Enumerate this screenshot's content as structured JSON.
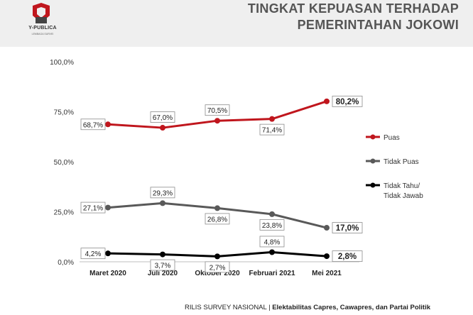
{
  "header": {
    "brand": "Y-PUBLICA",
    "brand_sub": "LEMBAGA SURVEI",
    "title_line1": "TINGKAT KEPUASAN TERHADAP",
    "title_line2": "PEMERINTAHAN JOKOWI"
  },
  "footer": {
    "left": "RILIS SURVEY NASIONAL | ",
    "right": "Elektabilitas Capres, Cawapres, dan Partai Politik"
  },
  "chart_data": {
    "type": "line",
    "title": "TINGKAT KEPUASAN TERHADAP PEMERINTAHAN JOKOWI",
    "categories": [
      "Maret 2020",
      "Juli 2020",
      "Oktober 2020",
      "Februari 2021",
      "Mei 2021"
    ],
    "ylim": [
      0,
      100
    ],
    "yticks": [
      "0,0%",
      "25,0%",
      "50,0%",
      "75,0%",
      "100,0%"
    ],
    "ytick_values": [
      0,
      25,
      50,
      75,
      100
    ],
    "grid": false,
    "legend_position": "right",
    "series": [
      {
        "name": "Puas",
        "color": "#c0161d",
        "values": [
          68.7,
          67.0,
          70.5,
          71.4,
          80.2
        ],
        "labels": [
          "68,7%",
          "67,0%",
          "70,5%",
          "71,4%",
          "80,2%"
        ],
        "label_pos": [
          "left",
          "above",
          "above",
          "below",
          "right"
        ]
      },
      {
        "name": "Tidak Puas",
        "color": "#595959",
        "values": [
          27.1,
          29.3,
          26.8,
          23.8,
          17.0
        ],
        "labels": [
          "27,1%",
          "29,3%",
          "26,8%",
          "23,8%",
          "17,0%"
        ],
        "label_pos": [
          "left",
          "above",
          "below",
          "below",
          "right"
        ]
      },
      {
        "name": "Tidak Tahu/ Tidak Jawab",
        "legend_lines": [
          "Tidak Tahu/",
          "Tidak Jawab"
        ],
        "color": "#000000",
        "values": [
          4.2,
          3.7,
          2.7,
          4.8,
          2.8
        ],
        "labels": [
          "4,2%",
          "3,7%",
          "2,7%",
          "4,8%",
          "2,8%"
        ],
        "label_pos": [
          "left",
          "below",
          "below",
          "above",
          "right"
        ]
      }
    ]
  }
}
